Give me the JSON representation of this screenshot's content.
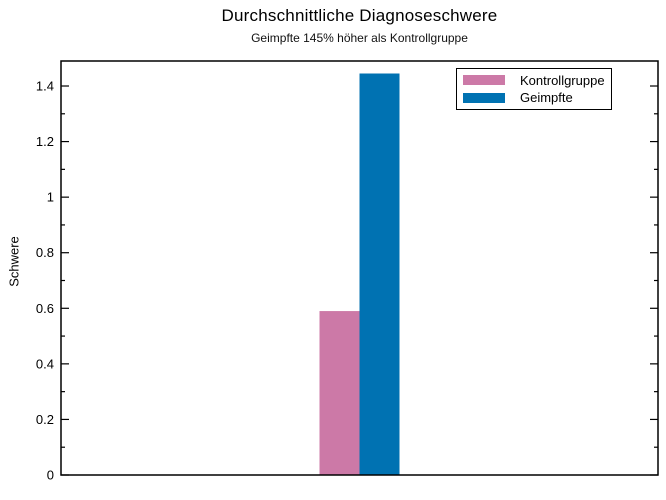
{
  "chart_data": {
    "type": "bar",
    "title": "Durchschnittliche Diagnoseschwere",
    "subtitle": "Geimpfte 145% höher als Kontrollgruppe",
    "ylabel": "Schwere",
    "xlabel": "",
    "categories": [
      ""
    ],
    "series": [
      {
        "name": "Kontrollgruppe",
        "color": "#CC79A7",
        "values": [
          0.59
        ]
      },
      {
        "name": "Geimpfte",
        "color": "#0072B2",
        "values": [
          1.445
        ]
      }
    ],
    "ylim": [
      0,
      1.49
    ],
    "yticks_major": [
      0,
      0.2,
      0.4,
      0.6,
      0.8,
      1.0,
      1.2,
      1.4
    ],
    "ytick_labels": [
      "0",
      "0.2",
      "0.4",
      "0.6",
      "0.8",
      "1",
      "1.2",
      "1.4"
    ],
    "ytick_minor_step": 0.1,
    "grid": false,
    "legend_position": "top-right",
    "axis_color": "#000000",
    "background_color": "#ffffff",
    "annotation": "Geimpfte is 145% higher than Kontrollgruppe"
  }
}
